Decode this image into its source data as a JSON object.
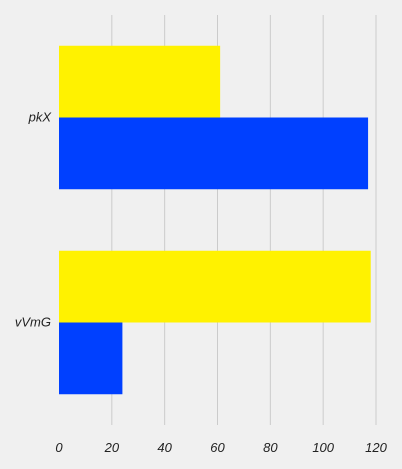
{
  "chart_data": {
    "type": "bar",
    "orientation": "horizontal",
    "categories": [
      "pkX",
      "vVmG"
    ],
    "series": [
      {
        "color": "#fff200",
        "values": [
          61,
          118
        ]
      },
      {
        "color": "#0040ff",
        "values": [
          117,
          24
        ]
      }
    ],
    "title": "",
    "xlabel": "",
    "ylabel": "",
    "xlim": [
      0,
      120
    ],
    "xticks": [
      "0",
      "20",
      "40",
      "60",
      "80",
      "100",
      "120"
    ],
    "grid": "vertical",
    "legend": "none"
  }
}
